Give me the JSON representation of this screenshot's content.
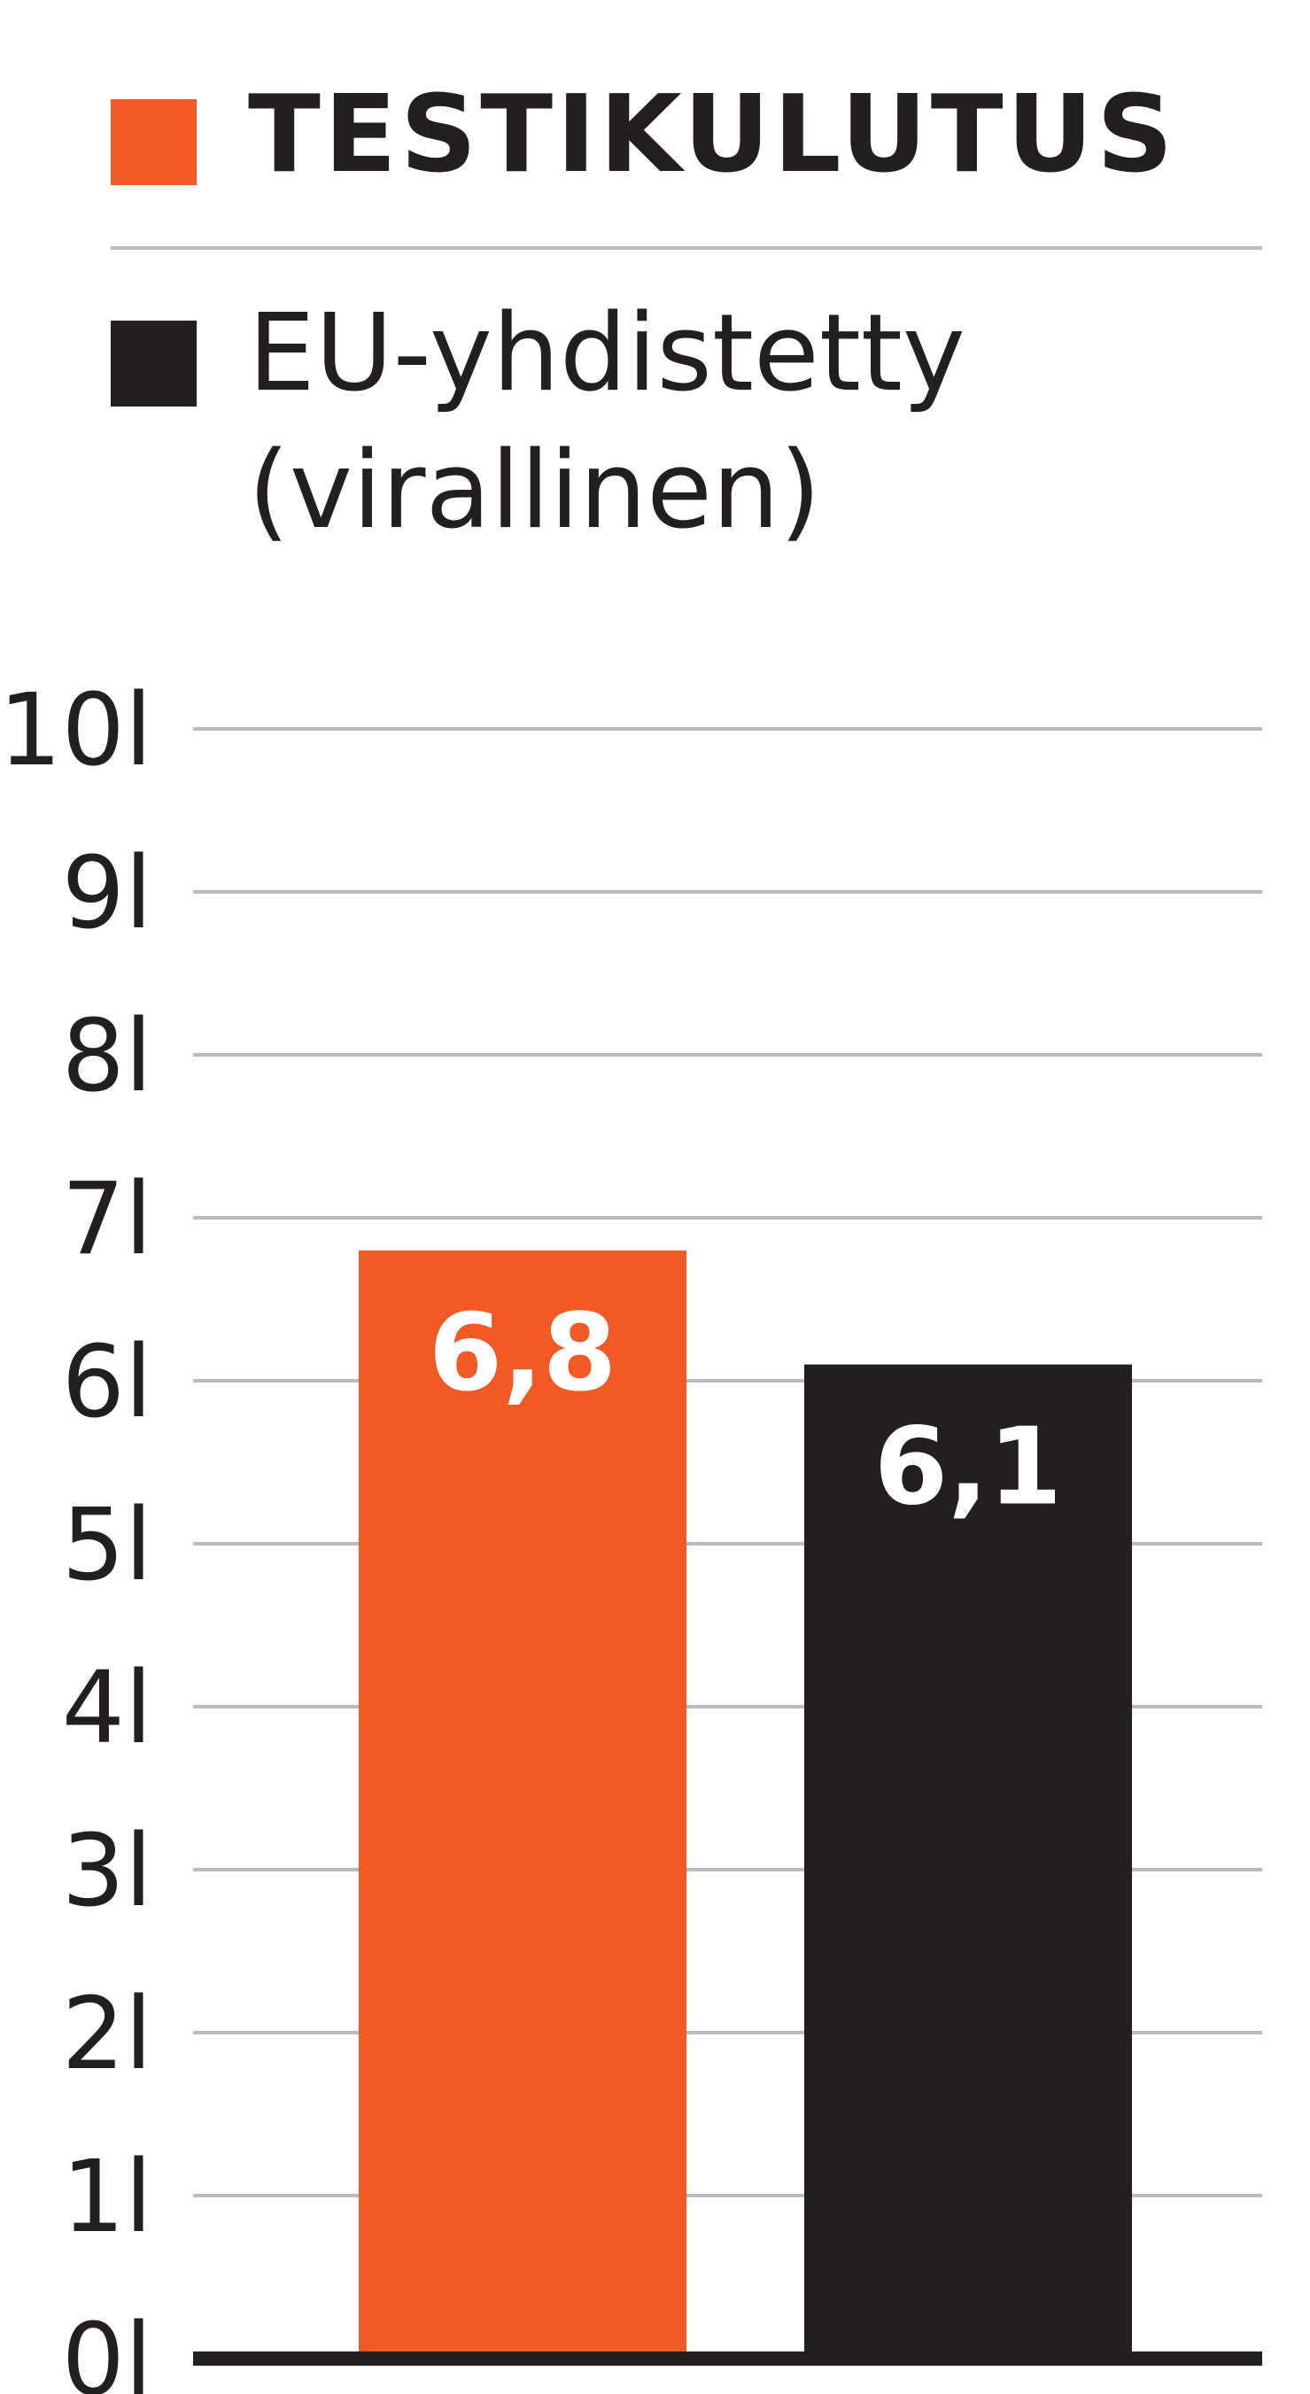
{
  "legend": {
    "items": [
      {
        "label": "TESTIKULUTUS",
        "color": "#f15a24"
      },
      {
        "label_line1": "EU-yhdistetty",
        "label_line2": "(virallinen)",
        "color": "#231f20"
      }
    ]
  },
  "chart_data": {
    "type": "bar",
    "categories": [
      "",
      ""
    ],
    "series": [
      {
        "name": "TESTIKULUTUS",
        "values": [
          6.8,
          null
        ],
        "color": "#f15a24"
      },
      {
        "name": "EU-yhdistetty (virallinen)",
        "values": [
          null,
          6.1
        ],
        "color": "#231f20"
      }
    ],
    "values": [
      6.8,
      6.1
    ],
    "data_labels": [
      "6,8",
      "6,1"
    ],
    "bar_colors": [
      "#f15a24",
      "#231f20"
    ],
    "yticks": [
      "0l",
      "1l",
      "2l",
      "3l",
      "4l",
      "5l",
      "6l",
      "7l",
      "8l",
      "9l",
      "10l"
    ],
    "ylim": [
      0,
      10
    ],
    "title": "",
    "xlabel": "",
    "ylabel": "",
    "grid": true,
    "legend_position": "top"
  }
}
